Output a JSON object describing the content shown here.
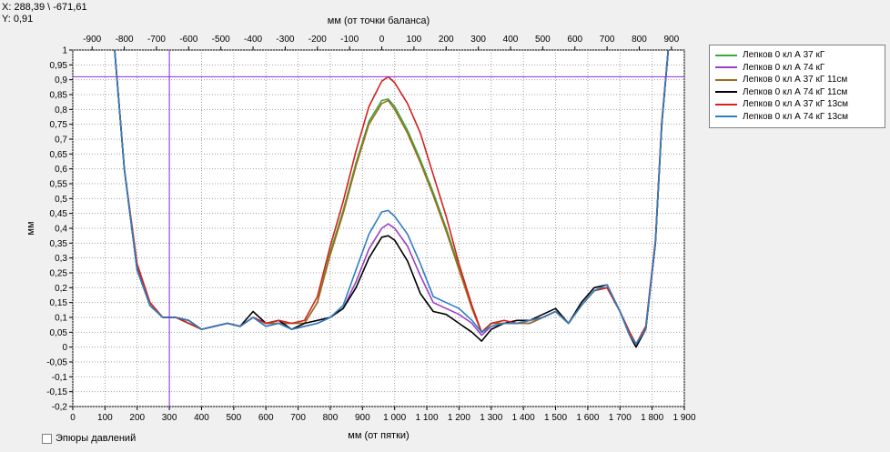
{
  "readout": {
    "x_text": "X: 288,39 \\ -671,61",
    "y_text": "Y: 0,91"
  },
  "checkbox": {
    "label": "Эпюры давлений",
    "checked": false
  },
  "chart_data": {
    "type": "line",
    "title": "",
    "xlabel": "мм (от пятки)",
    "x2label": "мм (от точки баланса)",
    "ylabel": "мм",
    "xlim": [
      0,
      1900
    ],
    "ylim": [
      -0.2,
      1
    ],
    "x_ticks": [
      0,
      100,
      200,
      300,
      400,
      500,
      600,
      700,
      800,
      900,
      1000,
      1100,
      1200,
      1300,
      1400,
      1500,
      1600,
      1700,
      1800,
      1900
    ],
    "x_tick_labels": [
      "0",
      "100",
      "200",
      "300",
      "400",
      "500",
      "600",
      "700",
      "800",
      "900",
      "1 000",
      "1 100",
      "1 200",
      "1 300",
      "1 400",
      "1 500",
      "1 600",
      "1 700",
      "1 800",
      "1 900"
    ],
    "x2_offset": 960,
    "x2_ticks": [
      -900,
      -800,
      -700,
      -600,
      -500,
      -400,
      -300,
      -200,
      -100,
      0,
      100,
      200,
      300,
      400,
      500,
      600,
      700,
      800,
      900
    ],
    "x2_tick_labels": [
      "-900",
      "-800",
      "-700",
      "-600",
      "-500",
      "-400",
      "-300",
      "-200",
      "-100",
      "0",
      "100",
      "200",
      "300",
      "400",
      "500",
      "600",
      "700",
      "800",
      "900"
    ],
    "y_ticks": [
      -0.2,
      -0.15,
      -0.1,
      -0.05,
      0,
      0.05,
      0.1,
      0.15,
      0.2,
      0.25,
      0.3,
      0.35,
      0.4,
      0.45,
      0.5,
      0.55,
      0.6,
      0.65,
      0.7,
      0.75,
      0.8,
      0.85,
      0.9,
      0.95,
      1
    ],
    "y_tick_labels": [
      "-0,2",
      "-0,15",
      "-0,1",
      "-0,05",
      "0",
      "0,05",
      "0,1",
      "0,15",
      "0,2",
      "0,25",
      "0,3",
      "0,35",
      "0,4",
      "0,45",
      "0,5",
      "0,55",
      "0,6",
      "0,65",
      "0,7",
      "0,75",
      "0,8",
      "0,85",
      "0,9",
      "0,95",
      "1"
    ],
    "grid": true,
    "legend_position": "right",
    "crosshair": {
      "x": 300,
      "y": 0.91,
      "color": "#8a2be2"
    },
    "x": [
      130,
      160,
      200,
      240,
      280,
      320,
      360,
      400,
      440,
      480,
      520,
      560,
      600,
      640,
      680,
      720,
      760,
      800,
      840,
      880,
      920,
      960,
      980,
      1000,
      1040,
      1080,
      1120,
      1160,
      1200,
      1240,
      1270,
      1300,
      1340,
      1380,
      1420,
      1460,
      1500,
      1540,
      1580,
      1620,
      1660,
      1700,
      1730,
      1750,
      1780,
      1810,
      1830,
      1850
    ],
    "series": [
      {
        "name": "Лепков 0 кл А 37 кГ",
        "color": "#3aa83a",
        "values": [
          1.0,
          0.6,
          0.26,
          0.14,
          0.1,
          0.1,
          0.08,
          0.06,
          0.07,
          0.08,
          0.07,
          0.1,
          0.08,
          0.08,
          0.08,
          0.08,
          0.15,
          0.32,
          0.46,
          0.62,
          0.76,
          0.83,
          0.835,
          0.81,
          0.73,
          0.63,
          0.52,
          0.4,
          0.27,
          0.13,
          0.05,
          0.08,
          0.08,
          0.08,
          0.08,
          0.1,
          0.12,
          0.08,
          0.14,
          0.19,
          0.2,
          0.12,
          0.05,
          0.01,
          0.06,
          0.35,
          0.75,
          1.0
        ]
      },
      {
        "name": "Лепков 0 кл А 74 кГ",
        "color": "#9b3fc4",
        "values": [
          1.0,
          0.6,
          0.26,
          0.14,
          0.1,
          0.1,
          0.09,
          0.06,
          0.07,
          0.08,
          0.07,
          0.1,
          0.07,
          0.08,
          0.06,
          0.07,
          0.08,
          0.1,
          0.13,
          0.22,
          0.33,
          0.4,
          0.415,
          0.4,
          0.34,
          0.24,
          0.15,
          0.13,
          0.11,
          0.08,
          0.04,
          0.07,
          0.08,
          0.08,
          0.08,
          0.1,
          0.12,
          0.08,
          0.14,
          0.19,
          0.2,
          0.12,
          0.04,
          0.01,
          0.06,
          0.35,
          0.75,
          1.0
        ]
      },
      {
        "name": "Лепков 0 кл А 37 кГ 11см",
        "color": "#a06b1e",
        "values": [
          1.0,
          0.6,
          0.27,
          0.14,
          0.1,
          0.1,
          0.08,
          0.06,
          0.07,
          0.08,
          0.07,
          0.1,
          0.08,
          0.08,
          0.08,
          0.08,
          0.15,
          0.31,
          0.45,
          0.61,
          0.75,
          0.82,
          0.83,
          0.8,
          0.72,
          0.62,
          0.51,
          0.39,
          0.26,
          0.13,
          0.05,
          0.08,
          0.08,
          0.08,
          0.08,
          0.1,
          0.12,
          0.08,
          0.14,
          0.19,
          0.2,
          0.12,
          0.05,
          0.01,
          0.06,
          0.35,
          0.75,
          1.0
        ]
      },
      {
        "name": "Лепков 0 кл А 74 кГ 11см",
        "color": "#000000",
        "values": [
          1.0,
          0.6,
          0.26,
          0.14,
          0.1,
          0.1,
          0.09,
          0.06,
          0.07,
          0.08,
          0.07,
          0.12,
          0.08,
          0.09,
          0.06,
          0.08,
          0.09,
          0.1,
          0.13,
          0.2,
          0.3,
          0.37,
          0.375,
          0.36,
          0.29,
          0.18,
          0.12,
          0.11,
          0.08,
          0.05,
          0.02,
          0.06,
          0.08,
          0.09,
          0.09,
          0.11,
          0.13,
          0.08,
          0.15,
          0.2,
          0.21,
          0.12,
          0.04,
          0.0,
          0.06,
          0.35,
          0.75,
          1.0
        ]
      },
      {
        "name": "Лепков 0 кл А 37 кГ 13см",
        "color": "#d42020",
        "values": [
          1.0,
          0.6,
          0.28,
          0.15,
          0.1,
          0.1,
          0.08,
          0.06,
          0.07,
          0.08,
          0.07,
          0.1,
          0.08,
          0.09,
          0.08,
          0.09,
          0.17,
          0.34,
          0.49,
          0.66,
          0.81,
          0.895,
          0.91,
          0.89,
          0.82,
          0.72,
          0.58,
          0.44,
          0.28,
          0.14,
          0.05,
          0.08,
          0.09,
          0.08,
          0.09,
          0.1,
          0.12,
          0.08,
          0.14,
          0.19,
          0.2,
          0.12,
          0.05,
          0.01,
          0.07,
          0.36,
          0.76,
          1.0
        ]
      },
      {
        "name": "Лепков 0 кл А 74 кГ 13см",
        "color": "#2f7fc0",
        "values": [
          1.0,
          0.6,
          0.26,
          0.14,
          0.1,
          0.1,
          0.09,
          0.06,
          0.07,
          0.08,
          0.07,
          0.1,
          0.07,
          0.08,
          0.06,
          0.07,
          0.08,
          0.1,
          0.14,
          0.26,
          0.38,
          0.455,
          0.46,
          0.44,
          0.38,
          0.28,
          0.17,
          0.15,
          0.13,
          0.09,
          0.05,
          0.07,
          0.08,
          0.08,
          0.09,
          0.1,
          0.12,
          0.08,
          0.14,
          0.19,
          0.21,
          0.12,
          0.04,
          0.01,
          0.06,
          0.35,
          0.75,
          1.0
        ]
      }
    ]
  }
}
